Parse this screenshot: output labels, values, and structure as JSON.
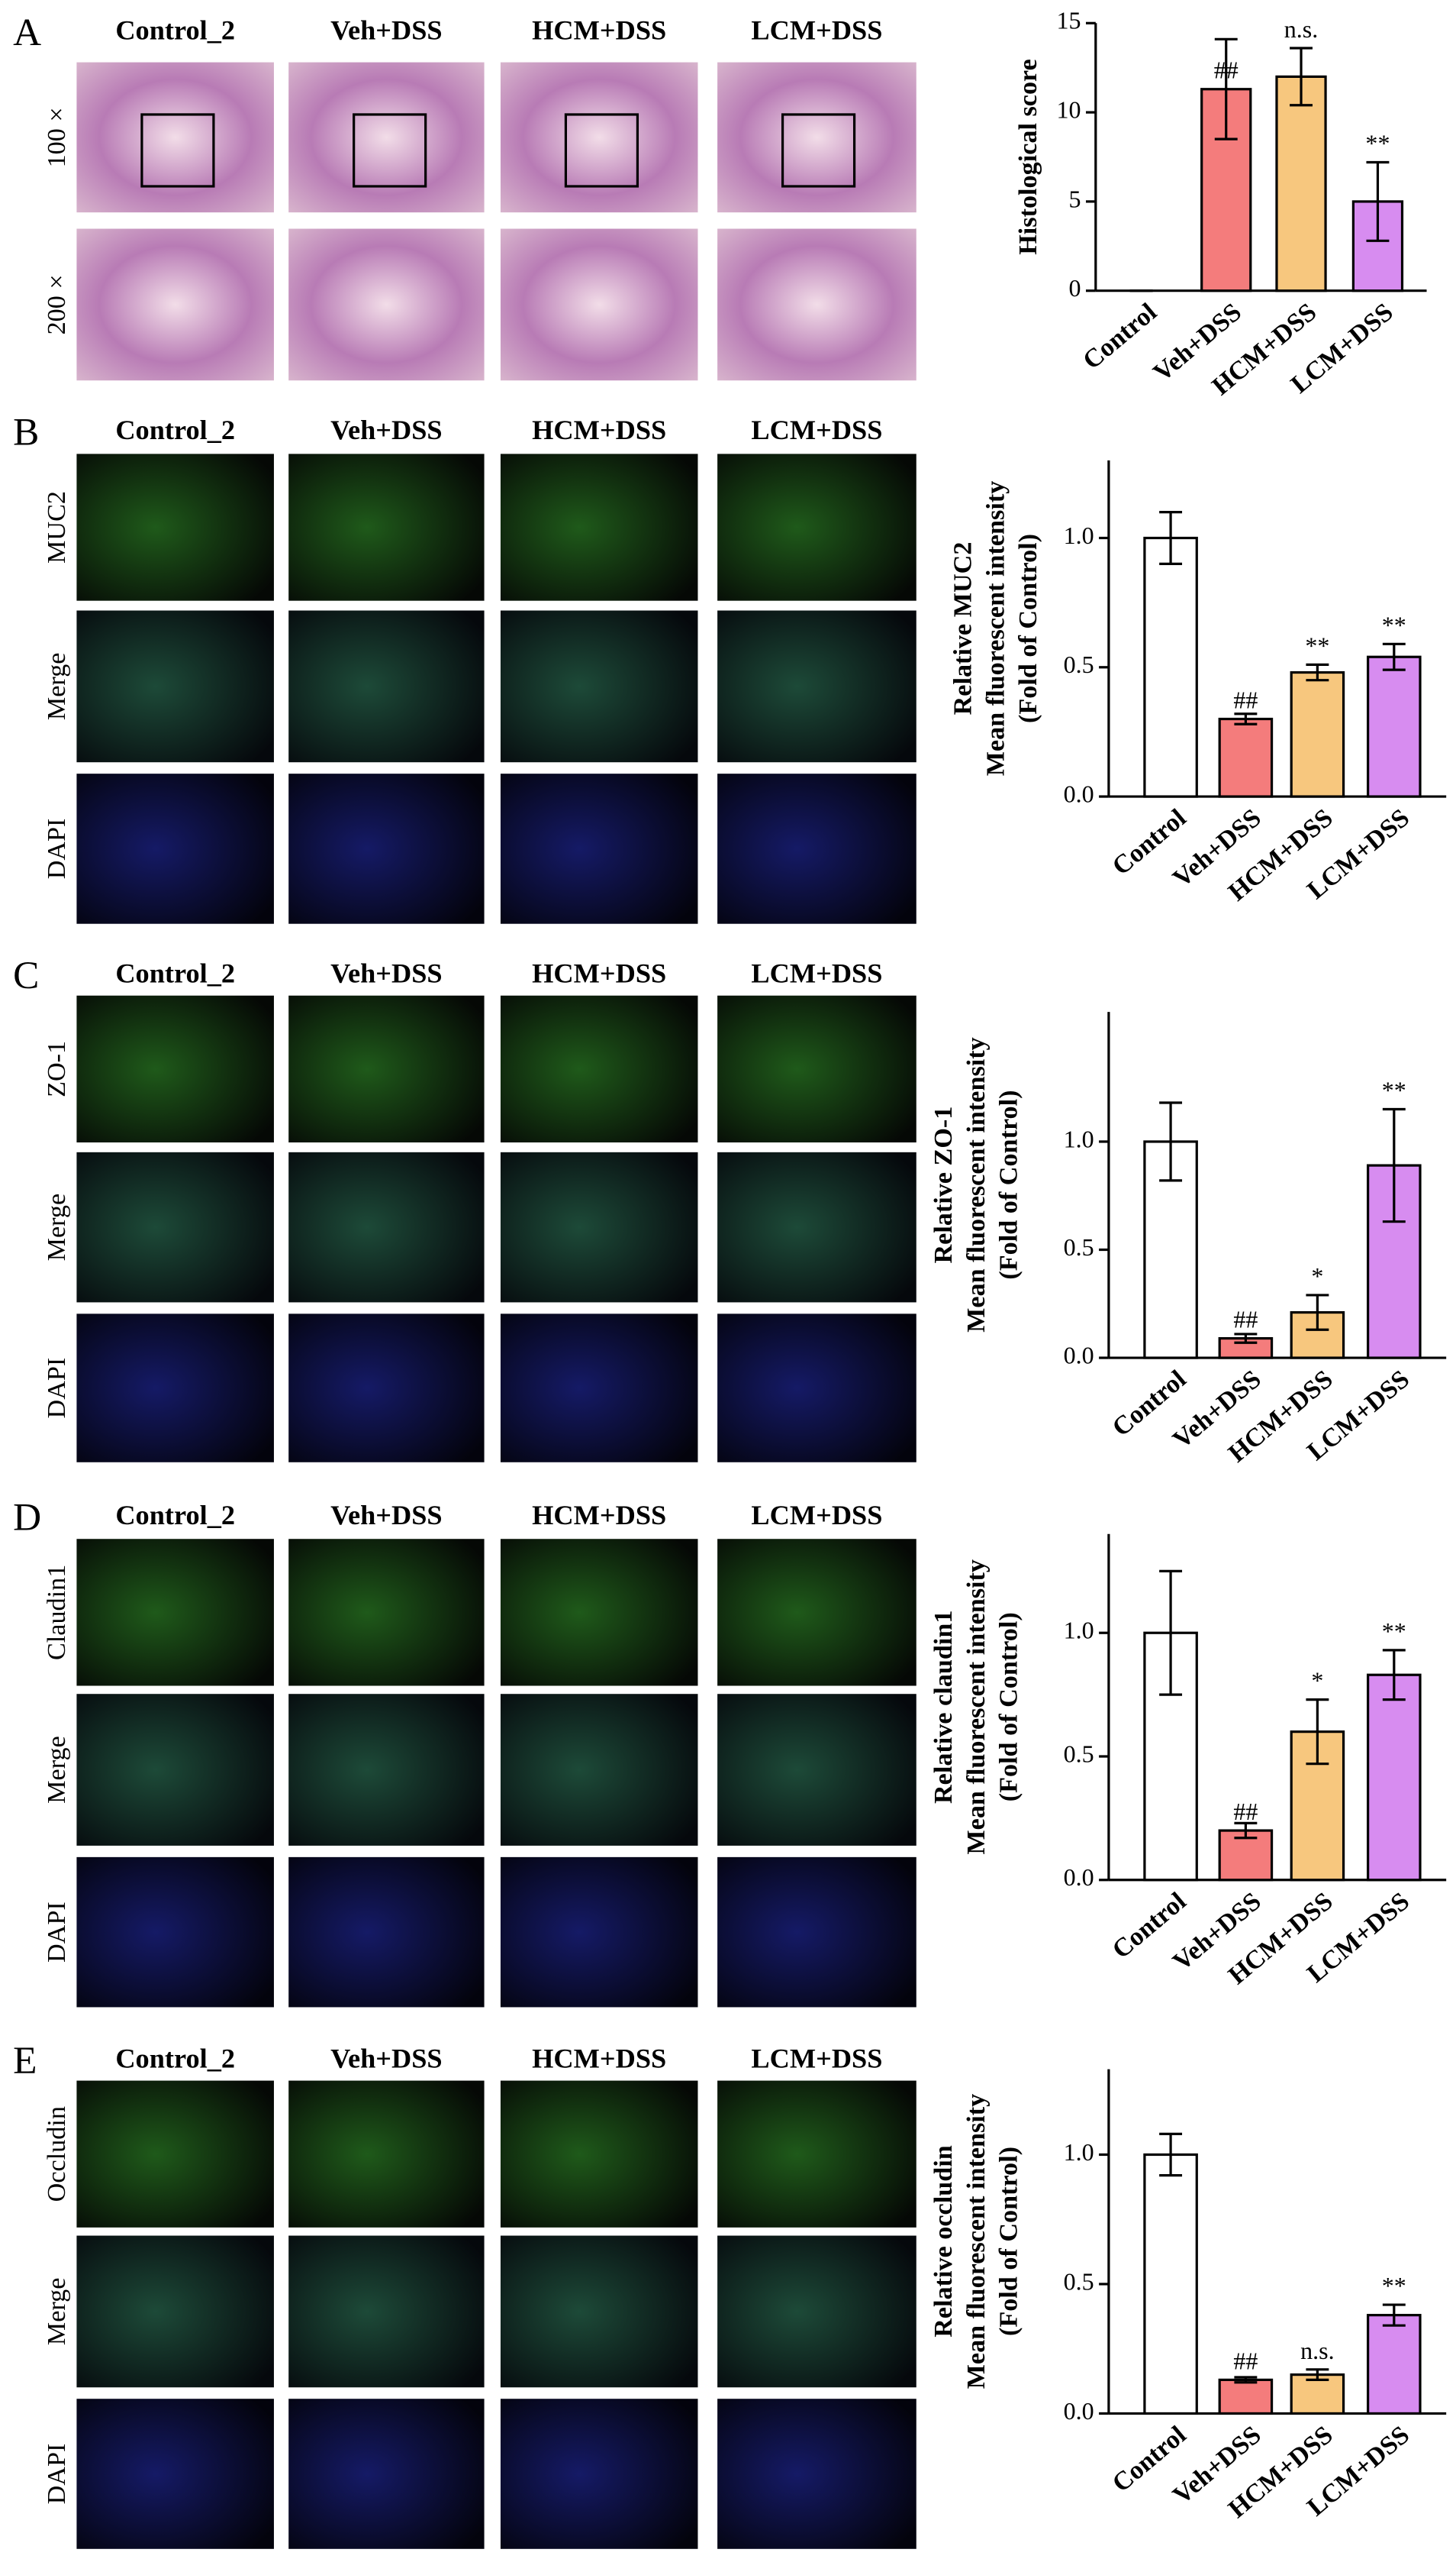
{
  "panels": [
    {
      "letter": "A",
      "columns": [
        "Control_2",
        "Veh+DSS",
        "HCM+DSS",
        "LCM+DSS"
      ],
      "rows": [
        "100 ×",
        "200 ×"
      ]
    },
    {
      "letter": "B",
      "columns": [
        "Control_2",
        "Veh+DSS",
        "HCM+DSS",
        "LCM+DSS"
      ],
      "rows": [
        "MUC2",
        "Merge",
        "DAPI"
      ]
    },
    {
      "letter": "C",
      "columns": [
        "Control_2",
        "Veh+DSS",
        "HCM+DSS",
        "LCM+DSS"
      ],
      "rows": [
        "ZO-1",
        "Merge",
        "DAPI"
      ]
    },
    {
      "letter": "D",
      "columns": [
        "Control_2",
        "Veh+DSS",
        "HCM+DSS",
        "LCM+DSS"
      ],
      "rows": [
        "Claudin1",
        "Merge",
        "DAPI"
      ]
    },
    {
      "letter": "E",
      "columns": [
        "Control_2",
        "Veh+DSS",
        "HCM+DSS",
        "LCM+DSS"
      ],
      "rows": [
        "Occludin",
        "Merge",
        "DAPI"
      ]
    }
  ],
  "chart_data": [
    {
      "type": "bar",
      "ylabel": [
        "Histological score"
      ],
      "categories": [
        "Control",
        "Veh+DSS",
        "HCM+DSS",
        "LCM+DSS"
      ],
      "values": [
        0,
        11.3,
        12,
        5
      ],
      "errors": [
        0,
        2.8,
        1.6,
        2.2
      ],
      "annotations": [
        null,
        "##",
        "n.s.",
        "**"
      ],
      "colors": [
        "#ffffff",
        "#f47c7c",
        "#f7c77e",
        "#d78cf0"
      ],
      "ylim": [
        0,
        15
      ],
      "yticks": [
        0,
        5,
        10,
        15
      ]
    },
    {
      "type": "bar",
      "ylabel": [
        "Relative MUC2",
        "Mean fluorescent intensity",
        "(Fold of Control)"
      ],
      "categories": [
        "Control",
        "Veh+DSS",
        "HCM+DSS",
        "LCM+DSS"
      ],
      "values": [
        1.0,
        0.3,
        0.48,
        0.54
      ],
      "errors": [
        0.1,
        0.02,
        0.03,
        0.05
      ],
      "annotations": [
        null,
        "##",
        "**",
        "**"
      ],
      "colors": [
        "#ffffff",
        "#f47c7c",
        "#f7c77e",
        "#d78cf0"
      ],
      "ylim": [
        0,
        1.3
      ],
      "yticks": [
        {
          "value": 0,
          "label": "0.0"
        },
        {
          "value": 0.5,
          "label": "0.5"
        },
        {
          "value": 1,
          "label": "1.0"
        }
      ]
    },
    {
      "type": "bar",
      "ylabel": [
        "Relative ZO-1",
        "Mean fluorescent intensity",
        "(Fold of Control)"
      ],
      "categories": [
        "Control",
        "Veh+DSS",
        "HCM+DSS",
        "LCM+DSS"
      ],
      "values": [
        1.0,
        0.09,
        0.21,
        0.89
      ],
      "errors": [
        0.18,
        0.02,
        0.08,
        0.26
      ],
      "annotations": [
        null,
        "##",
        "*",
        "**"
      ],
      "colors": [
        "#ffffff",
        "#f47c7c",
        "#f7c77e",
        "#d78cf0"
      ],
      "ylim": [
        0,
        1.6
      ],
      "yticks": [
        {
          "value": 0,
          "label": "0.0"
        },
        {
          "value": 0.5,
          "label": "0.5"
        },
        {
          "value": 1,
          "label": "1.0"
        }
      ]
    },
    {
      "type": "bar",
      "ylabel": [
        "Relative claudin1",
        "Mean fluorescent intensity",
        "(Fold of Control)"
      ],
      "categories": [
        "Control",
        "Veh+DSS",
        "HCM+DSS",
        "LCM+DSS"
      ],
      "values": [
        1.0,
        0.2,
        0.6,
        0.83
      ],
      "errors": [
        0.25,
        0.03,
        0.13,
        0.1
      ],
      "annotations": [
        null,
        "##",
        "*",
        "**"
      ],
      "colors": [
        "#ffffff",
        "#f47c7c",
        "#f7c77e",
        "#d78cf0"
      ],
      "ylim": [
        0,
        1.4
      ],
      "yticks": [
        {
          "value": 0,
          "label": "0.0"
        },
        {
          "value": 0.5,
          "label": "0.5"
        },
        {
          "value": 1,
          "label": "1.0"
        }
      ]
    },
    {
      "type": "bar",
      "ylabel": [
        "Relative occludin",
        "Mean fluorescent intensity",
        "(Fold of Control)"
      ],
      "categories": [
        "Control",
        "Veh+DSS",
        "HCM+DSS",
        "LCM+DSS"
      ],
      "values": [
        1.0,
        0.13,
        0.15,
        0.38
      ],
      "errors": [
        0.08,
        0.01,
        0.02,
        0.04
      ],
      "annotations": [
        null,
        "##",
        "n.s.",
        "**"
      ],
      "colors": [
        "#ffffff",
        "#f47c7c",
        "#f7c77e",
        "#d78cf0"
      ],
      "ylim": [
        0,
        1.33
      ],
      "yticks": [
        {
          "value": 0,
          "label": "0.0"
        },
        {
          "value": 0.5,
          "label": "0.5"
        },
        {
          "value": 1,
          "label": "1.0"
        }
      ]
    }
  ]
}
